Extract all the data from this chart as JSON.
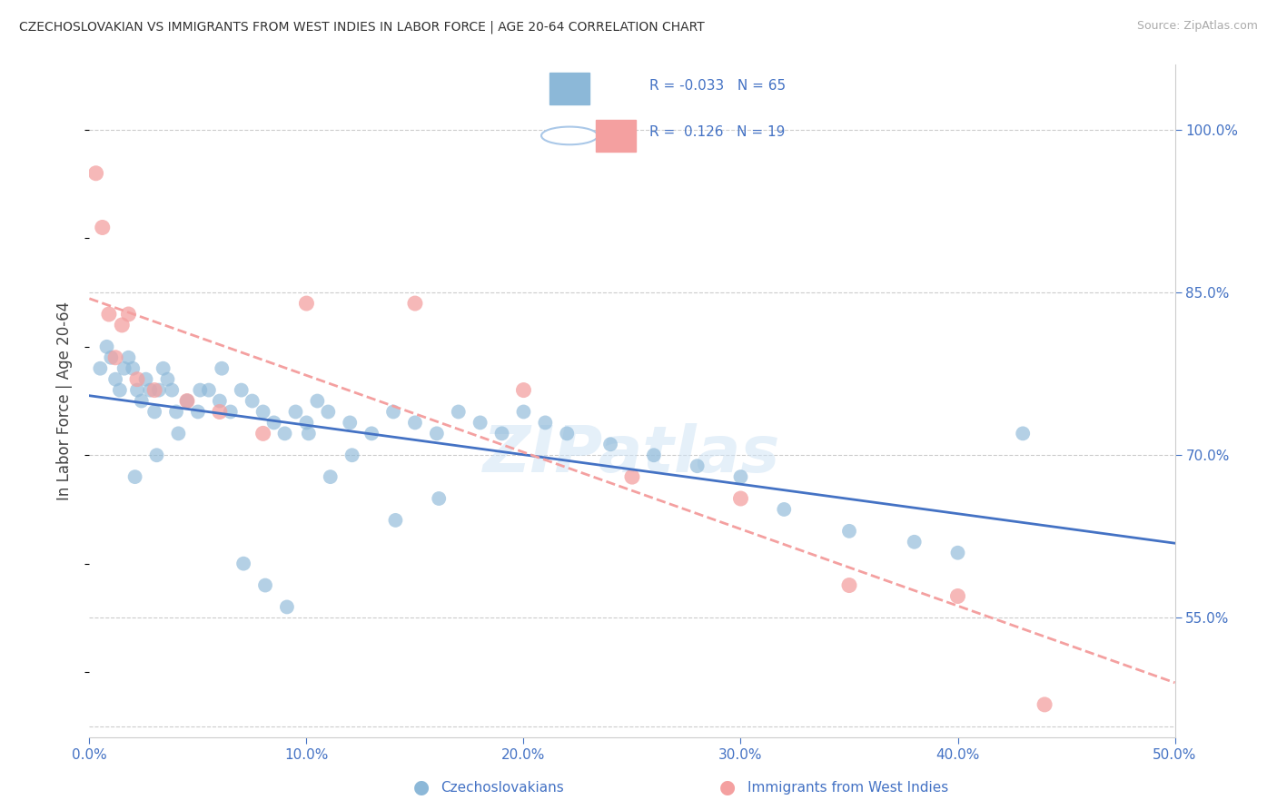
{
  "title": "CZECHOSLOVAKIAN VS IMMIGRANTS FROM WEST INDIES IN LABOR FORCE | AGE 20-64 CORRELATION CHART",
  "source": "Source: ZipAtlas.com",
  "ylabel": "In Labor Force | Age 20-64",
  "xlim": [
    0.0,
    50.0
  ],
  "ylim": [
    44.0,
    106.0
  ],
  "xtick_values": [
    0,
    10,
    20,
    30,
    40,
    50
  ],
  "xtick_labels": [
    "0.0%",
    "10.0%",
    "20.0%",
    "30.0%",
    "40.0%",
    "50.0%"
  ],
  "ytick_values": [
    55,
    70,
    85,
    100
  ],
  "ytick_labels": [
    "55.0%",
    "70.0%",
    "85.0%",
    "100.0%"
  ],
  "blue_color": "#8cb8d8",
  "pink_color": "#f4a0a0",
  "blue_line_color": "#4472c4",
  "pink_line_color": "#f4a0a0",
  "blue_x": [
    0.5,
    0.8,
    1.0,
    1.2,
    1.4,
    1.6,
    1.8,
    2.0,
    2.2,
    2.4,
    2.6,
    2.8,
    3.0,
    3.2,
    3.4,
    3.6,
    3.8,
    4.0,
    4.5,
    5.0,
    5.5,
    6.0,
    6.5,
    7.0,
    7.5,
    8.0,
    8.5,
    9.0,
    9.5,
    10.0,
    10.5,
    11.0,
    12.0,
    13.0,
    14.0,
    15.0,
    16.0,
    17.0,
    18.0,
    19.0,
    20.0,
    21.0,
    22.0,
    24.0,
    26.0,
    28.0,
    30.0,
    32.0,
    35.0,
    38.0,
    40.0,
    2.1,
    3.1,
    4.1,
    5.1,
    6.1,
    7.1,
    8.1,
    9.1,
    10.1,
    11.1,
    12.1,
    14.1,
    16.1,
    43.0
  ],
  "blue_y": [
    78.0,
    80.0,
    79.0,
    77.0,
    76.0,
    78.0,
    79.0,
    78.0,
    76.0,
    75.0,
    77.0,
    76.0,
    74.0,
    76.0,
    78.0,
    77.0,
    76.0,
    74.0,
    75.0,
    74.0,
    76.0,
    75.0,
    74.0,
    76.0,
    75.0,
    74.0,
    73.0,
    72.0,
    74.0,
    73.0,
    75.0,
    74.0,
    73.0,
    72.0,
    74.0,
    73.0,
    72.0,
    74.0,
    73.0,
    72.0,
    74.0,
    73.0,
    72.0,
    71.0,
    70.0,
    69.0,
    68.0,
    65.0,
    63.0,
    62.0,
    61.0,
    68.0,
    70.0,
    72.0,
    76.0,
    78.0,
    60.0,
    58.0,
    56.0,
    72.0,
    68.0,
    70.0,
    64.0,
    66.0,
    72.0
  ],
  "pink_x": [
    0.3,
    0.6,
    0.9,
    1.2,
    1.5,
    1.8,
    2.2,
    3.0,
    4.5,
    6.0,
    8.0,
    10.0,
    15.0,
    20.0,
    25.0,
    30.0,
    35.0,
    40.0,
    44.0
  ],
  "pink_y": [
    96.0,
    91.0,
    83.0,
    79.0,
    82.0,
    83.0,
    77.0,
    76.0,
    75.0,
    74.0,
    72.0,
    84.0,
    84.0,
    76.0,
    68.0,
    66.0,
    58.0,
    57.0,
    47.0
  ],
  "watermark": "ZIPatlas",
  "legend_r1": "R = -0.033",
  "legend_n1": "N = 65",
  "legend_r2": "R =  0.126",
  "legend_n2": "N = 19",
  "bottom_label1": "Czechoslovakians",
  "bottom_label2": "Immigrants from West Indies"
}
